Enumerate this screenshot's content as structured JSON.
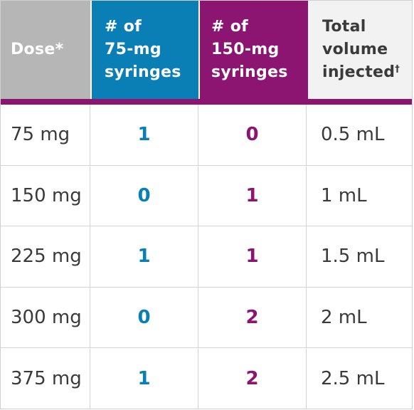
{
  "header": {
    "dose": "Dose*",
    "syringes_75": "# of\n75-mg\nsyringes",
    "syringes_150": "# of\n150-mg\nsyringes",
    "total_volume": "Total\nvolume\ninjected",
    "total_volume_mark": "†"
  },
  "rows": [
    {
      "dose": "75 mg",
      "syringes_75": "1",
      "syringes_150": "0",
      "volume": "0.5 mL"
    },
    {
      "dose": "150 mg",
      "syringes_75": "0",
      "syringes_150": "1",
      "volume": "1 mL"
    },
    {
      "dose": "225 mg",
      "syringes_75": "1",
      "syringes_150": "1",
      "volume": "1.5 mL"
    },
    {
      "dose": "300 mg",
      "syringes_75": "0",
      "syringes_150": "2",
      "volume": "2 mL"
    },
    {
      "dose": "375 mg",
      "syringes_75": "1",
      "syringes_150": "2",
      "volume": "2.5 mL"
    }
  ],
  "colors": {
    "blue": "#0a7fb5",
    "purple": "#8b1570",
    "grey_header": "#b6b6b6"
  }
}
